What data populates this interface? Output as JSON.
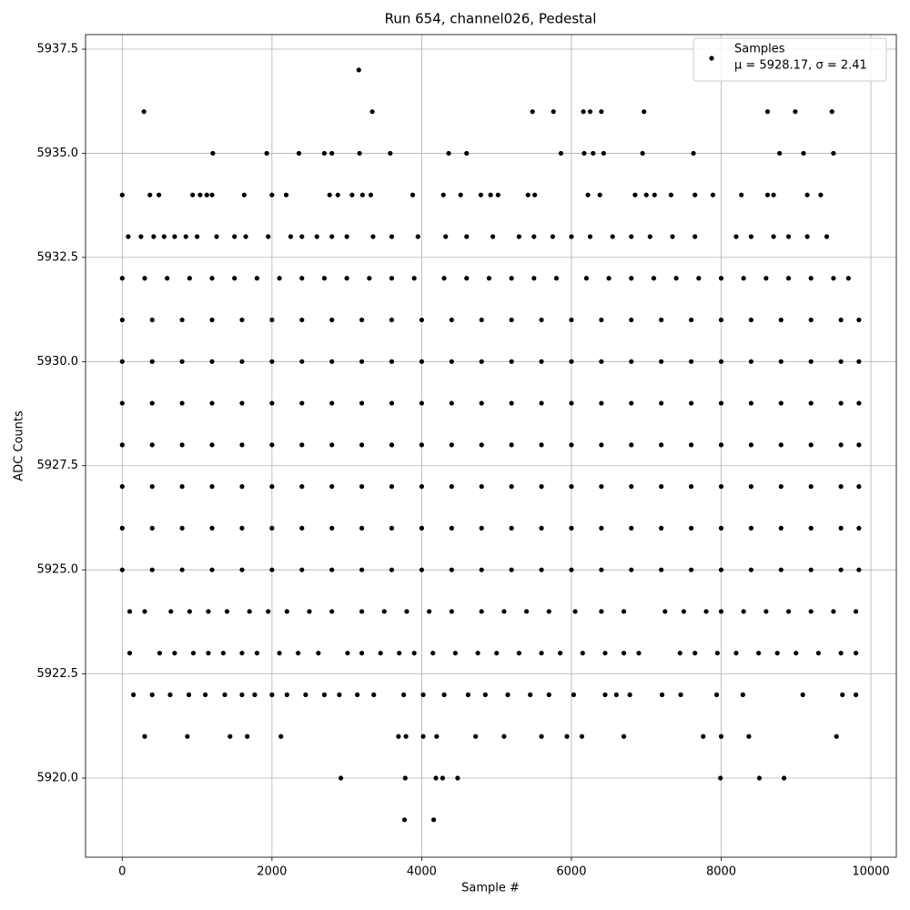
{
  "chart_data": {
    "type": "scatter",
    "title": "Run 654, channel026, Pedestal",
    "x_label": "Sample #",
    "y_label": "ADC Counts",
    "xlim": [
      -490,
      10340
    ],
    "ylim": [
      5918.1,
      5937.85
    ],
    "xticks": [
      0,
      2000,
      4000,
      6000,
      8000,
      10000
    ],
    "yticks": [
      {
        "value": 5920,
        "label": "5920.0"
      },
      5922.5,
      {
        "value": 5925,
        "label": "5925.0"
      },
      5927.5,
      {
        "value": 5930,
        "label": "5930.0"
      },
      5932.5,
      {
        "value": 5935,
        "label": "5935.0"
      },
      5937.5
    ],
    "grid": true,
    "legend": "upper right",
    "legend_stats": "μ = 5928.17, σ = 2.41",
    "series": [
      {
        "name": "Samples",
        "color": "#000000",
        "x": [
          3160,
          290,
          3340,
          5480,
          5760,
          6160,
          6250,
          6400,
          6970,
          8620,
          8990,
          9480,
          1210,
          1930,
          2360,
          2700,
          2800,
          3170,
          3580,
          4360,
          4600,
          5860,
          6170,
          6290,
          6430,
          6950,
          7630,
          8780,
          9100,
          9500,
          0,
          370,
          490,
          940,
          1040,
          1130,
          1200,
          1630,
          2000,
          2190,
          2770,
          2880,
          3070,
          3210,
          3320,
          3880,
          4290,
          4520,
          4790,
          4920,
          5020,
          5420,
          5510,
          6220,
          6380,
          6850,
          7000,
          7110,
          7330,
          7650,
          7890,
          8270,
          8620,
          8700,
          9150,
          9330,
          80,
          250,
          420,
          560,
          700,
          850,
          1000,
          1260,
          1500,
          1650,
          1950,
          2250,
          2400,
          2600,
          2800,
          3000,
          3350,
          3600,
          3950,
          4320,
          4600,
          4950,
          5300,
          5500,
          5750,
          6000,
          6250,
          6550,
          6800,
          7050,
          7350,
          7650,
          8200,
          8400,
          8700,
          8900,
          9150,
          9410,
          0,
          300,
          600,
          900,
          1200,
          1500,
          1800,
          2100,
          2400,
          2700,
          3000,
          3300,
          3600,
          3900,
          4300,
          4600,
          4900,
          5200,
          5500,
          5800,
          6200,
          6500,
          6800,
          7100,
          7400,
          7700,
          8000,
          8300,
          8600,
          8900,
          9200,
          9500,
          9700,
          0,
          400,
          800,
          1200,
          1600,
          2000,
          2400,
          2800,
          3200,
          3600,
          4000,
          4400,
          4800,
          5200,
          5600,
          6000,
          6400,
          6800,
          7200,
          7600,
          8000,
          8400,
          8800,
          9200,
          9600,
          9840,
          0,
          400,
          800,
          1200,
          1600,
          2000,
          2400,
          2800,
          3200,
          3600,
          4000,
          4400,
          4800,
          5200,
          5600,
          6000,
          6400,
          6800,
          7200,
          7600,
          8000,
          8400,
          8800,
          9200,
          9600,
          9840,
          0,
          400,
          800,
          1200,
          1600,
          2000,
          2400,
          2800,
          3200,
          3600,
          4000,
          4400,
          4800,
          5200,
          5600,
          6000,
          6400,
          6800,
          7200,
          7600,
          8000,
          8400,
          8800,
          9200,
          9600,
          9840,
          0,
          400,
          800,
          1200,
          1600,
          2000,
          2400,
          2800,
          3200,
          3600,
          4000,
          4400,
          4800,
          5200,
          5600,
          6000,
          6400,
          6800,
          7200,
          7600,
          8000,
          8400,
          8800,
          9200,
          9600,
          9840,
          0,
          400,
          800,
          1200,
          1600,
          2000,
          2400,
          2800,
          3200,
          3600,
          4000,
          4400,
          4800,
          5200,
          5600,
          6000,
          6400,
          6800,
          7200,
          7600,
          8000,
          8400,
          8800,
          9200,
          9600,
          9840,
          0,
          400,
          800,
          1200,
          1600,
          2000,
          2400,
          2800,
          3200,
          3600,
          4000,
          4400,
          4800,
          5200,
          5600,
          6000,
          6400,
          6800,
          7200,
          7600,
          8000,
          8400,
          8800,
          9200,
          9600,
          9840,
          0,
          400,
          800,
          1200,
          1600,
          2000,
          2400,
          2800,
          3200,
          3600,
          4000,
          4400,
          4800,
          5200,
          5600,
          6000,
          6400,
          6800,
          7200,
          7600,
          8000,
          8400,
          8800,
          9200,
          9600,
          9840,
          100,
          300,
          650,
          900,
          1150,
          1400,
          1700,
          1950,
          2200,
          2500,
          2800,
          3200,
          3500,
          3800,
          4100,
          4400,
          4800,
          5100,
          5400,
          5700,
          6050,
          6400,
          6700,
          7250,
          7500,
          7800,
          8000,
          8300,
          8600,
          8900,
          9200,
          9500,
          9800,
          100,
          500,
          700,
          950,
          1150,
          1350,
          1600,
          1800,
          2100,
          2350,
          2620,
          3010,
          3200,
          3450,
          3700,
          3900,
          4150,
          4450,
          4750,
          5000,
          5300,
          5600,
          5850,
          6150,
          6450,
          6700,
          6900,
          7450,
          7650,
          7950,
          8200,
          8500,
          8750,
          9000,
          9300,
          9600,
          9800,
          150,
          400,
          640,
          890,
          1110,
          1370,
          1600,
          1770,
          2000,
          2200,
          2450,
          2700,
          2900,
          3140,
          3360,
          3760,
          4020,
          4300,
          4620,
          4850,
          5150,
          5450,
          5700,
          6030,
          6450,
          6600,
          6780,
          7210,
          7460,
          7940,
          8290,
          9090,
          9620,
          9800,
          300,
          870,
          1440,
          1670,
          2120,
          3690,
          3790,
          4020,
          4200,
          4720,
          5100,
          5600,
          5940,
          6140,
          6700,
          7760,
          8000,
          8370,
          9540,
          2920,
          3780,
          4190,
          4280,
          4480,
          7990,
          8510,
          8840,
          3770,
          4160
        ],
        "values": [
          5937,
          5936,
          5936,
          5936,
          5936,
          5936,
          5936,
          5936,
          5936,
          5936,
          5936,
          5936,
          5935,
          5935,
          5935,
          5935,
          5935,
          5935,
          5935,
          5935,
          5935,
          5935,
          5935,
          5935,
          5935,
          5935,
          5935,
          5935,
          5935,
          5935,
          5934,
          5934,
          5934,
          5934,
          5934,
          5934,
          5934,
          5934,
          5934,
          5934,
          5934,
          5934,
          5934,
          5934,
          5934,
          5934,
          5934,
          5934,
          5934,
          5934,
          5934,
          5934,
          5934,
          5934,
          5934,
          5934,
          5934,
          5934,
          5934,
          5934,
          5934,
          5934,
          5934,
          5934,
          5934,
          5934,
          5933,
          5933,
          5933,
          5933,
          5933,
          5933,
          5933,
          5933,
          5933,
          5933,
          5933,
          5933,
          5933,
          5933,
          5933,
          5933,
          5933,
          5933,
          5933,
          5933,
          5933,
          5933,
          5933,
          5933,
          5933,
          5933,
          5933,
          5933,
          5933,
          5933,
          5933,
          5933,
          5933,
          5933,
          5933,
          5933,
          5933,
          5933,
          5932,
          5932,
          5932,
          5932,
          5932,
          5932,
          5932,
          5932,
          5932,
          5932,
          5932,
          5932,
          5932,
          5932,
          5932,
          5932,
          5932,
          5932,
          5932,
          5932,
          5932,
          5932,
          5932,
          5932,
          5932,
          5932,
          5932,
          5932,
          5932,
          5932,
          5932,
          5932,
          5932,
          5931,
          5931,
          5931,
          5931,
          5931,
          5931,
          5931,
          5931,
          5931,
          5931,
          5931,
          5931,
          5931,
          5931,
          5931,
          5931,
          5931,
          5931,
          5931,
          5931,
          5931,
          5931,
          5931,
          5931,
          5931,
          5931,
          5930,
          5930,
          5930,
          5930,
          5930,
          5930,
          5930,
          5930,
          5930,
          5930,
          5930,
          5930,
          5930,
          5930,
          5930,
          5930,
          5930,
          5930,
          5930,
          5930,
          5930,
          5930,
          5930,
          5930,
          5930,
          5930,
          5929,
          5929,
          5929,
          5929,
          5929,
          5929,
          5929,
          5929,
          5929,
          5929,
          5929,
          5929,
          5929,
          5929,
          5929,
          5929,
          5929,
          5929,
          5929,
          5929,
          5929,
          5929,
          5929,
          5929,
          5929,
          5929,
          5928,
          5928,
          5928,
          5928,
          5928,
          5928,
          5928,
          5928,
          5928,
          5928,
          5928,
          5928,
          5928,
          5928,
          5928,
          5928,
          5928,
          5928,
          5928,
          5928,
          5928,
          5928,
          5928,
          5928,
          5928,
          5928,
          5927,
          5927,
          5927,
          5927,
          5927,
          5927,
          5927,
          5927,
          5927,
          5927,
          5927,
          5927,
          5927,
          5927,
          5927,
          5927,
          5927,
          5927,
          5927,
          5927,
          5927,
          5927,
          5927,
          5927,
          5927,
          5927,
          5926,
          5926,
          5926,
          5926,
          5926,
          5926,
          5926,
          5926,
          5926,
          5926,
          5926,
          5926,
          5926,
          5926,
          5926,
          5926,
          5926,
          5926,
          5926,
          5926,
          5926,
          5926,
          5926,
          5926,
          5926,
          5926,
          5925,
          5925,
          5925,
          5925,
          5925,
          5925,
          5925,
          5925,
          5925,
          5925,
          5925,
          5925,
          5925,
          5925,
          5925,
          5925,
          5925,
          5925,
          5925,
          5925,
          5925,
          5925,
          5925,
          5925,
          5925,
          5925,
          5924,
          5924,
          5924,
          5924,
          5924,
          5924,
          5924,
          5924,
          5924,
          5924,
          5924,
          5924,
          5924,
          5924,
          5924,
          5924,
          5924,
          5924,
          5924,
          5924,
          5924,
          5924,
          5924,
          5924,
          5924,
          5924,
          5924,
          5924,
          5924,
          5924,
          5924,
          5924,
          5924,
          5923,
          5923,
          5923,
          5923,
          5923,
          5923,
          5923,
          5923,
          5923,
          5923,
          5923,
          5923,
          5923,
          5923,
          5923,
          5923,
          5923,
          5923,
          5923,
          5923,
          5923,
          5923,
          5923,
          5923,
          5923,
          5923,
          5923,
          5923,
          5923,
          5923,
          5923,
          5923,
          5923,
          5923,
          5923,
          5923,
          5923,
          5922,
          5922,
          5922,
          5922,
          5922,
          5922,
          5922,
          5922,
          5922,
          5922,
          5922,
          5922,
          5922,
          5922,
          5922,
          5922,
          5922,
          5922,
          5922,
          5922,
          5922,
          5922,
          5922,
          5922,
          5922,
          5922,
          5922,
          5922,
          5922,
          5922,
          5922,
          5922,
          5922,
          5922,
          5921,
          5921,
          5921,
          5921,
          5921,
          5921,
          5921,
          5921,
          5921,
          5921,
          5921,
          5921,
          5921,
          5921,
          5921,
          5921,
          5921,
          5921,
          5921,
          5920,
          5920,
          5920,
          5920,
          5920,
          5920,
          5920,
          5920,
          5919,
          5919
        ]
      }
    ]
  }
}
